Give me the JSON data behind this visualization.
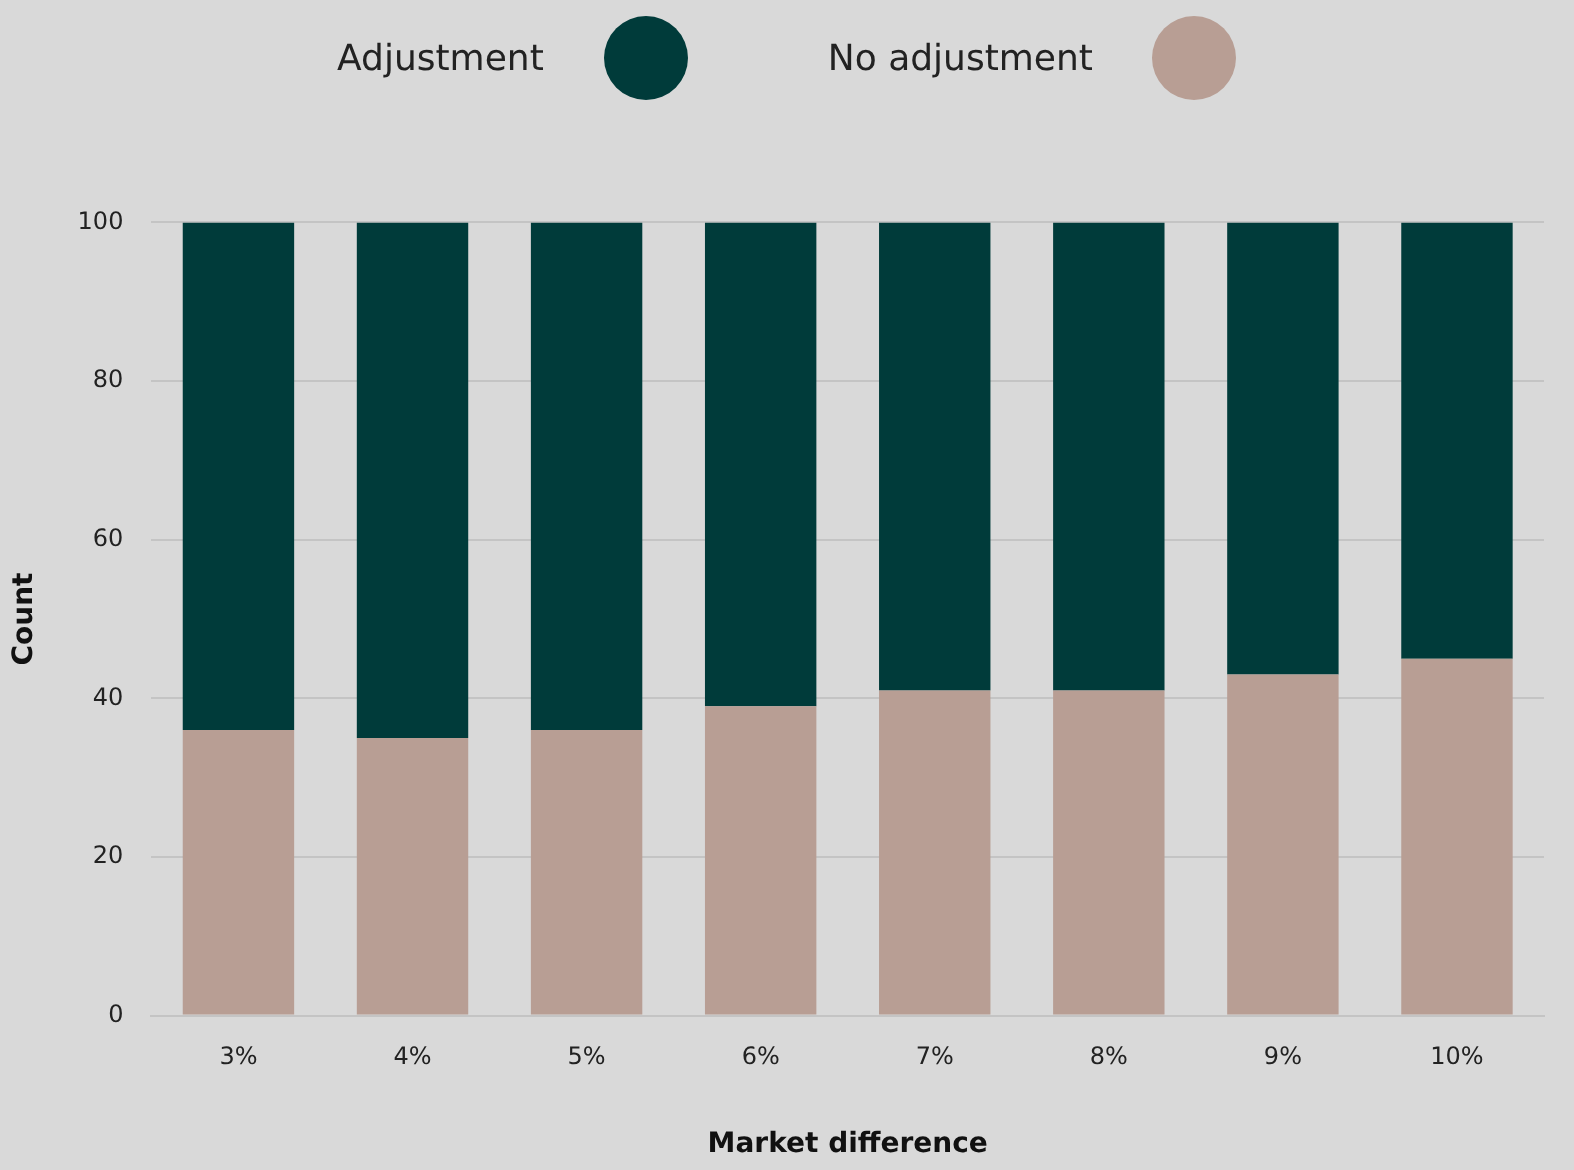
{
  "chart_data": {
    "type": "bar",
    "stacked": true,
    "xlabel": "Market difference",
    "ylabel": "Count",
    "categories": [
      "3%",
      "4%",
      "5%",
      "6%",
      "7%",
      "8%",
      "9%",
      "10%"
    ],
    "series": [
      {
        "name": "No adjustment",
        "color": "#b89e94",
        "values": [
          36,
          35,
          36,
          39,
          41,
          41,
          43,
          45
        ]
      },
      {
        "name": "Adjustment",
        "color": "#003b3a",
        "values": [
          64,
          65,
          64,
          61,
          59,
          59,
          57,
          55
        ]
      }
    ],
    "ylim": [
      0,
      100
    ],
    "yticks": [
      0,
      20,
      40,
      60,
      80,
      100
    ],
    "grid": "y",
    "legend": "top"
  }
}
